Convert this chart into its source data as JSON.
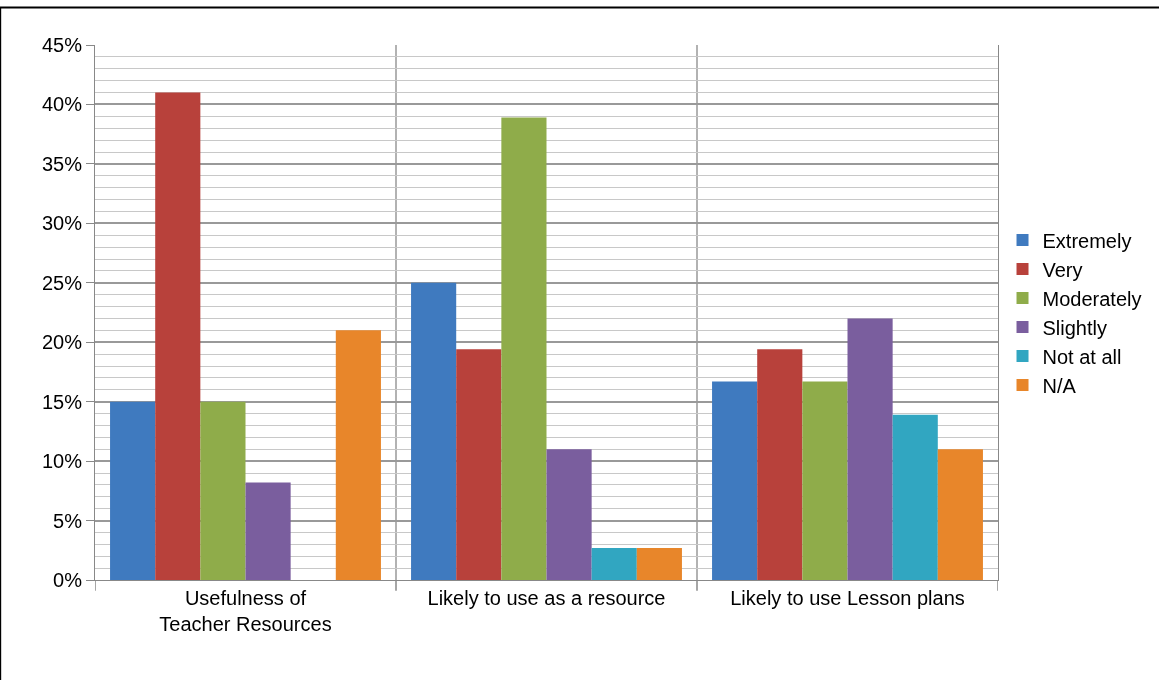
{
  "chart_data": {
    "type": "bar",
    "categories": [
      "Usefulness of Teacher Resources",
      "Likely to use as a resource",
      "Likely to use Lesson plans"
    ],
    "series": [
      {
        "name": "Extremely",
        "color": "#3f7abf",
        "values": [
          15,
          25,
          16.7
        ]
      },
      {
        "name": "Very",
        "color": "#b8413b",
        "values": [
          41,
          19.4,
          19.4
        ]
      },
      {
        "name": "Moderately",
        "color": "#8fac4a",
        "values": [
          15,
          38.9,
          16.7
        ]
      },
      {
        "name": "Slightly",
        "color": "#7a5e9e",
        "values": [
          8.2,
          11,
          22
        ]
      },
      {
        "name": "Not at all",
        "color": "#31a6c1",
        "values": [
          null,
          2.7,
          13.9
        ]
      },
      {
        "name": "N/A",
        "color": "#e8862a",
        "values": [
          21,
          2.7,
          11
        ]
      }
    ],
    "ylim": [
      0,
      45
    ],
    "yticks": [
      {
        "value": 0,
        "label": "0%"
      },
      {
        "value": 5,
        "label": "5%"
      },
      {
        "value": 10,
        "label": "10%"
      },
      {
        "value": 15,
        "label": "15%"
      },
      {
        "value": 20,
        "label": "20%"
      },
      {
        "value": 25,
        "label": "25%"
      },
      {
        "value": 30,
        "label": "30%"
      },
      {
        "value": 35,
        "label": "35%"
      },
      {
        "value": 40,
        "label": "40%"
      },
      {
        "value": 45,
        "label": "45%"
      }
    ],
    "grid": true,
    "legend": "right"
  }
}
